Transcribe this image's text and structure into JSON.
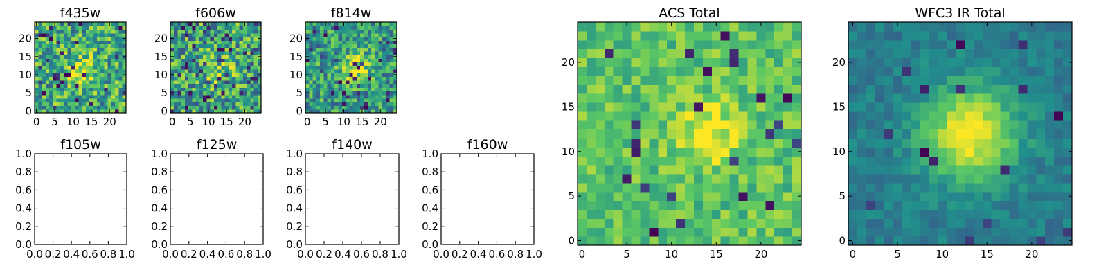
{
  "figure": {
    "colormap": "viridis",
    "colormap_stops": [
      "#440154",
      "#3b528b",
      "#21918c",
      "#5ec962",
      "#fde725"
    ],
    "background": "#ffffff"
  },
  "chart_data": [
    {
      "id": "f435w",
      "type": "heatmap",
      "title": "f435w",
      "grid_size": 25,
      "xlim": [
        -0.5,
        24.5
      ],
      "ylim": [
        -0.5,
        24.5
      ],
      "xticks": [
        0,
        5,
        10,
        15,
        20
      ],
      "yticks": [
        0,
        5,
        10,
        15,
        20
      ],
      "tick_labels_x": [
        "0",
        "5",
        "10",
        "15",
        "20"
      ],
      "tick_labels_y": [
        "0",
        "5",
        "10",
        "15",
        "20"
      ],
      "source_center": [
        12,
        11
      ],
      "source_sigma": 3.0,
      "source_amplitude": 0.25,
      "noise_level": 0.6,
      "baseline": 0.62,
      "seed": 11,
      "dark_pixel_fraction": 0.05
    },
    {
      "id": "f606w",
      "type": "heatmap",
      "title": "f606w",
      "grid_size": 25,
      "xlim": [
        -0.5,
        24.5
      ],
      "ylim": [
        -0.5,
        24.5
      ],
      "xticks": [
        0,
        5,
        10,
        15,
        20
      ],
      "yticks": [
        0,
        5,
        10,
        15,
        20
      ],
      "tick_labels_x": [
        "0",
        "5",
        "10",
        "15",
        "20"
      ],
      "tick_labels_y": [
        "0",
        "5",
        "10",
        "15",
        "20"
      ],
      "source_center": [
        13,
        11
      ],
      "source_sigma": 3.0,
      "source_amplitude": 0.2,
      "noise_level": 0.65,
      "baseline": 0.58,
      "seed": 23,
      "dark_pixel_fraction": 0.07
    },
    {
      "id": "f814w",
      "type": "heatmap",
      "title": "f814w",
      "grid_size": 25,
      "xlim": [
        -0.5,
        24.5
      ],
      "ylim": [
        -0.5,
        24.5
      ],
      "xticks": [
        0,
        5,
        10,
        15,
        20
      ],
      "yticks": [
        0,
        5,
        10,
        15,
        20
      ],
      "tick_labels_x": [
        "0",
        "5",
        "10",
        "15",
        "20"
      ],
      "tick_labels_y": [
        "0",
        "5",
        "10",
        "15",
        "20"
      ],
      "source_center": [
        13,
        12
      ],
      "source_sigma": 2.8,
      "source_amplitude": 0.4,
      "noise_level": 0.55,
      "baseline": 0.55,
      "seed": 37,
      "dark_pixel_fraction": 0.05
    },
    {
      "id": "f105w",
      "type": "empty_axes",
      "title": "f105w",
      "xlim": [
        0,
        1
      ],
      "ylim": [
        0,
        1
      ],
      "tick_labels_x": [
        "0.0",
        "0.2",
        "0.4",
        "0.6",
        "0.8",
        "1.0"
      ],
      "tick_labels_y": [
        "0.0",
        "0.2",
        "0.4",
        "0.6",
        "0.8",
        "1.0"
      ]
    },
    {
      "id": "f125w",
      "type": "empty_axes",
      "title": "f125w",
      "xlim": [
        0,
        1
      ],
      "ylim": [
        0,
        1
      ],
      "tick_labels_x": [
        "0.0",
        "0.2",
        "0.4",
        "0.6",
        "0.8",
        "1.0"
      ],
      "tick_labels_y": [
        "0.0",
        "0.2",
        "0.4",
        "0.6",
        "0.8",
        "1.0"
      ]
    },
    {
      "id": "f140w",
      "type": "empty_axes",
      "title": "f140w",
      "xlim": [
        0,
        1
      ],
      "ylim": [
        0,
        1
      ],
      "tick_labels_x": [
        "0.0",
        "0.2",
        "0.4",
        "0.6",
        "0.8",
        "1.0"
      ],
      "tick_labels_y": [
        "0.0",
        "0.2",
        "0.4",
        "0.6",
        "0.8",
        "1.0"
      ]
    },
    {
      "id": "f160w",
      "type": "empty_axes",
      "title": "f160w",
      "xlim": [
        0,
        1
      ],
      "ylim": [
        0,
        1
      ],
      "tick_labels_x": [
        "0.0",
        "0.2",
        "0.4",
        "0.6",
        "0.8",
        "1.0"
      ],
      "tick_labels_y": [
        "0.0",
        "0.2",
        "0.4",
        "0.6",
        "0.8",
        "1.0"
      ]
    },
    {
      "id": "acs_total",
      "type": "heatmap",
      "title": "ACS Total",
      "grid_size": 25,
      "xlim": [
        -0.5,
        24.5
      ],
      "ylim": [
        -0.5,
        24.5
      ],
      "xticks": [
        0,
        5,
        10,
        15,
        20
      ],
      "yticks": [
        0,
        5,
        10,
        15,
        20
      ],
      "tick_labels_x": [
        "0",
        "5",
        "10",
        "15",
        "20"
      ],
      "tick_labels_y": [
        "0",
        "5",
        "10",
        "15",
        "20"
      ],
      "source_center": [
        14,
        12
      ],
      "source_sigma": 2.5,
      "source_amplitude": 0.3,
      "noise_level": 0.32,
      "baseline": 0.72,
      "seed": 51,
      "dark_pixel_fraction": 0.03
    },
    {
      "id": "wfc3_ir_total",
      "type": "heatmap",
      "title": "WFC3 IR Total",
      "grid_size": 25,
      "xlim": [
        -0.5,
        24.5
      ],
      "ylim": [
        -0.5,
        24.5
      ],
      "xticks": [
        0,
        5,
        10,
        15,
        20
      ],
      "yticks": [
        0,
        5,
        10,
        15,
        20
      ],
      "tick_labels_x": [
        "0",
        "5",
        "10",
        "15",
        "20"
      ],
      "tick_labels_y": [
        "0",
        "5",
        "10",
        "15",
        "20"
      ],
      "source_center": [
        13,
        12
      ],
      "source_sigma": 3.6,
      "source_amplitude": 0.6,
      "noise_level": 0.18,
      "baseline": 0.42,
      "seed": 77,
      "dark_pixel_fraction": 0.02
    }
  ]
}
